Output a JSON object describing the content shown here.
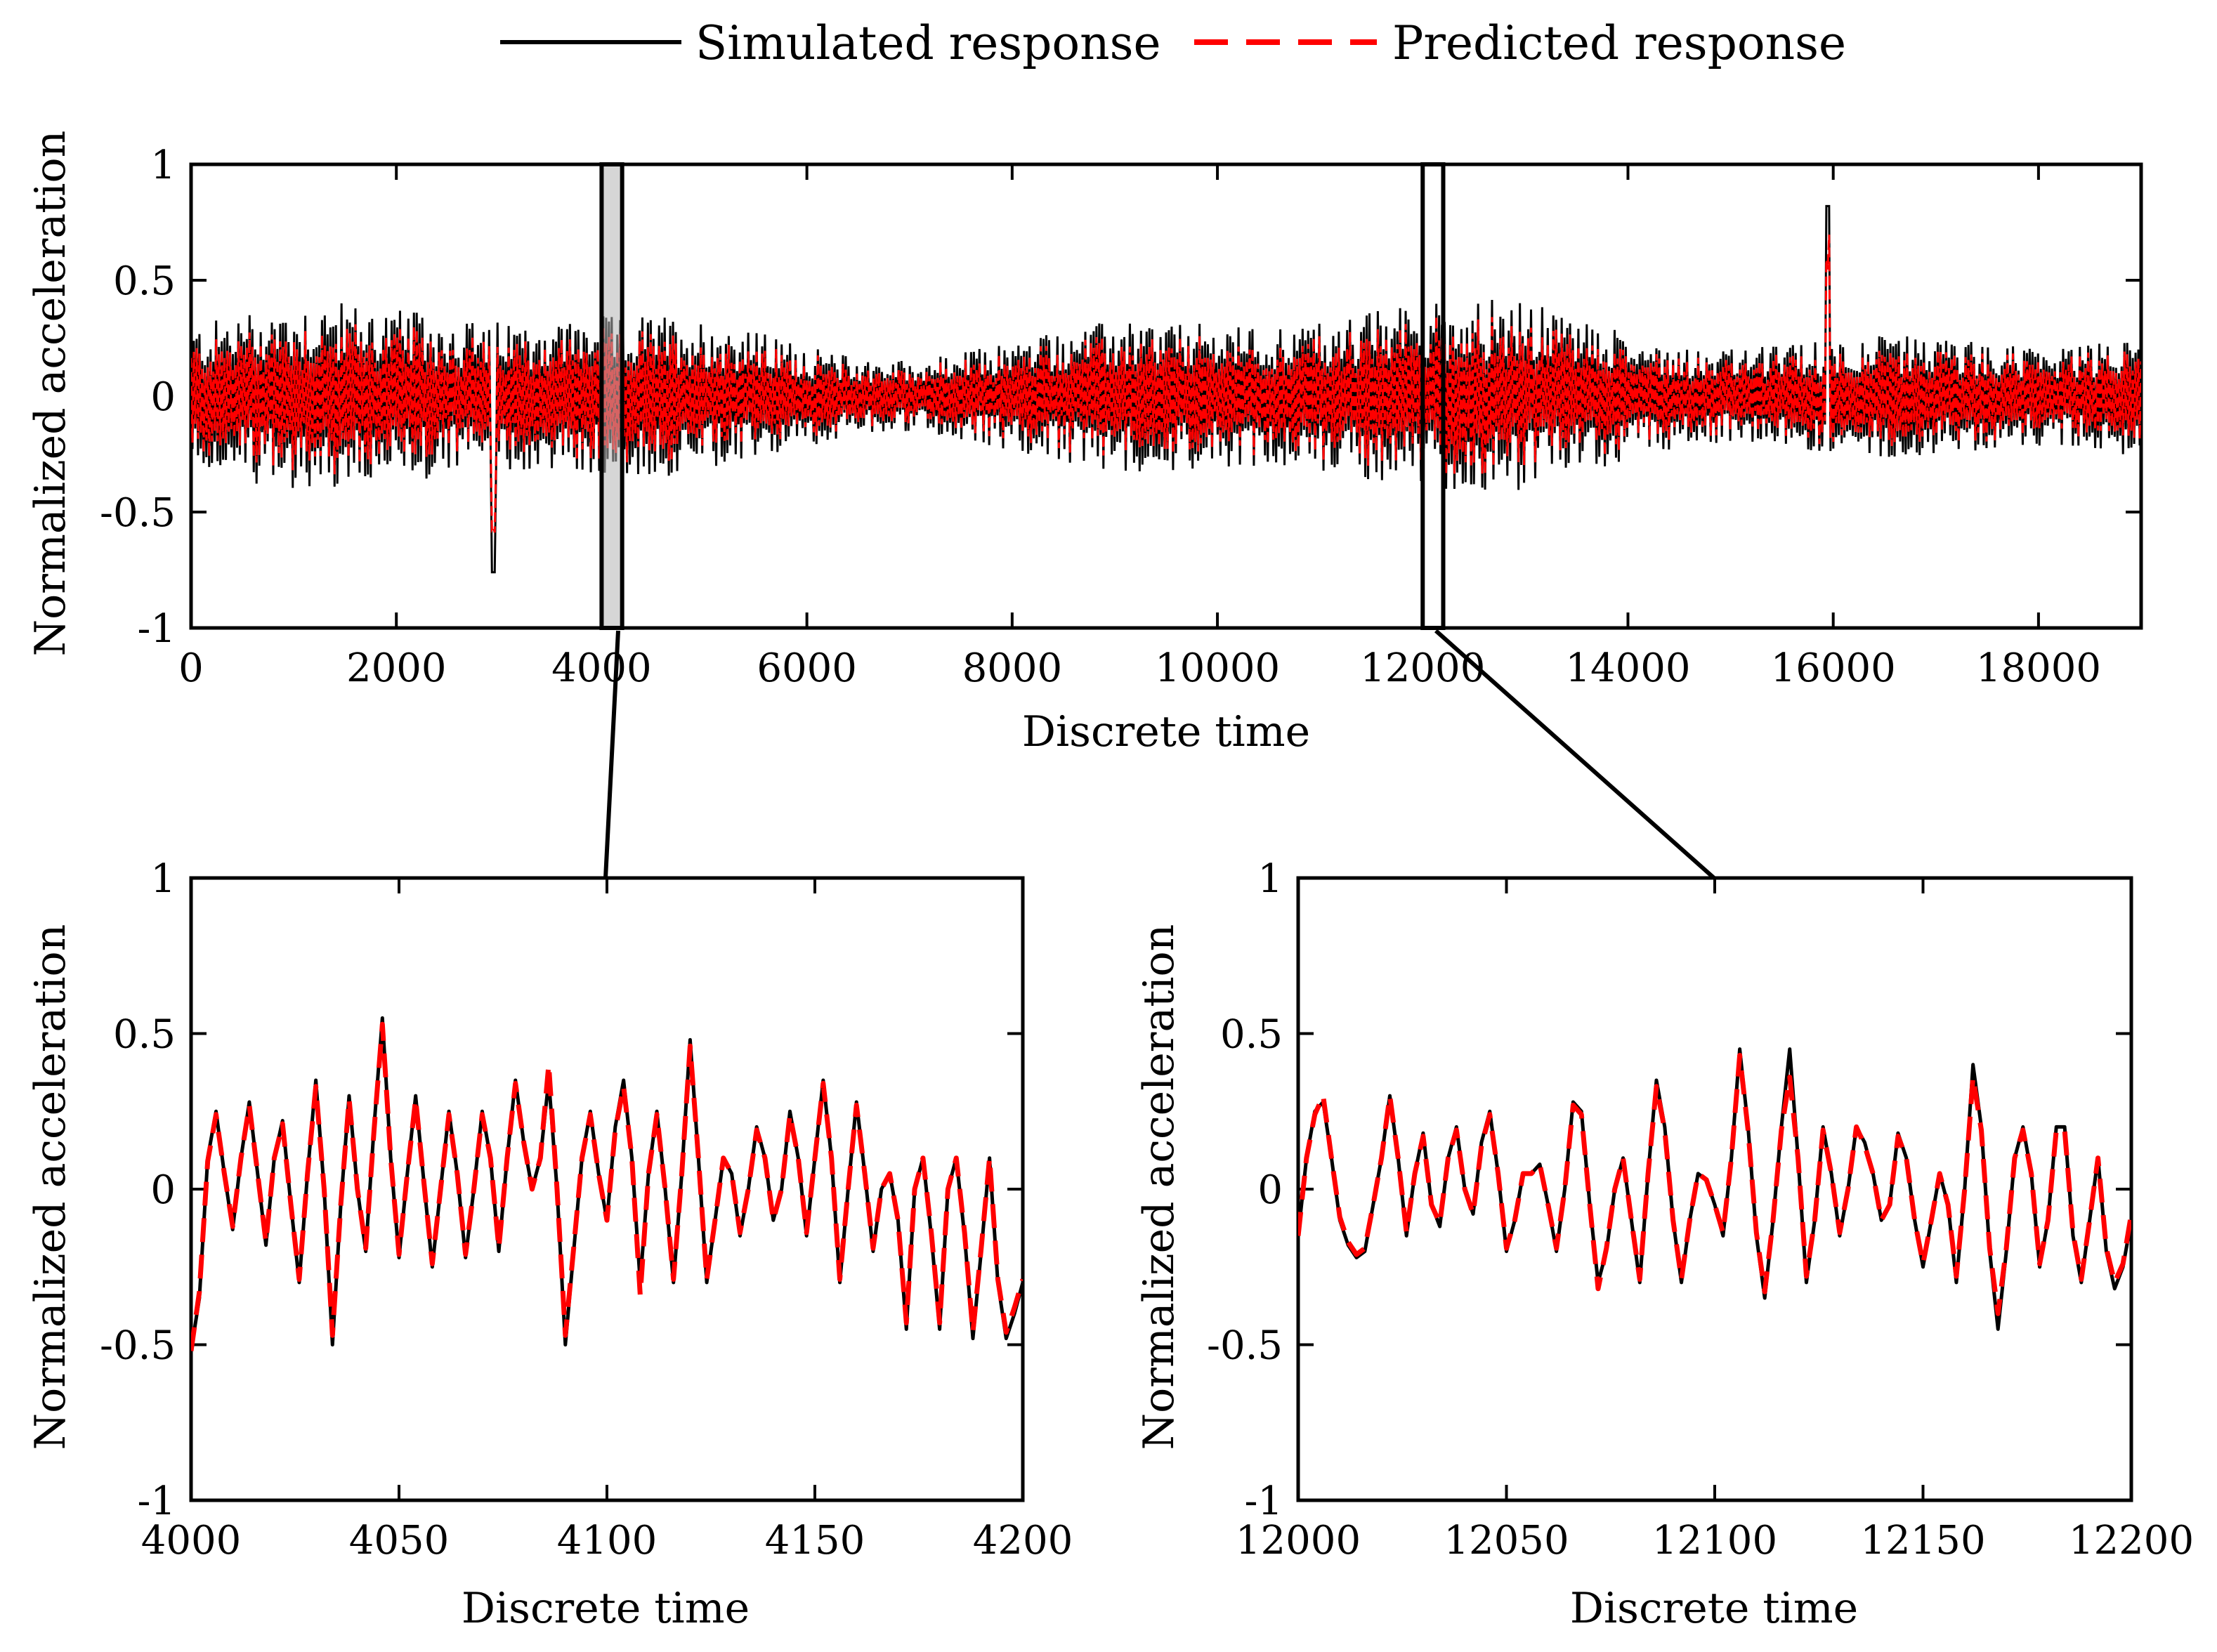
{
  "legend": {
    "simulated_label": "Simulated response",
    "predicted_label": "Predicted response"
  },
  "colors": {
    "simulated": "#000000",
    "predicted": "#ff0000"
  },
  "chart_data": [
    {
      "id": "overview",
      "type": "line",
      "xlabel": "Discrete time",
      "ylabel": "Normalized acceleration",
      "xlim": [
        0,
        19000
      ],
      "ylim": [
        -1,
        1
      ],
      "xticks": [
        0,
        2000,
        4000,
        6000,
        8000,
        10000,
        12000,
        14000,
        16000,
        18000
      ],
      "yticks": [
        1,
        0.5,
        0,
        -0.5,
        -1
      ],
      "ytick_labels": [
        "1",
        "0.5",
        "0",
        "-0.5",
        "-1"
      ],
      "series": [
        {
          "name": "Simulated response",
          "style": "solid",
          "approx_amplitude": 0.35,
          "min": -0.76,
          "max": 0.82
        },
        {
          "name": "Predicted response",
          "style": "dashed",
          "approx_amplitude": 0.28
        }
      ],
      "highlights": [
        [
          4000,
          4200
        ],
        [
          12000,
          12200
        ]
      ]
    },
    {
      "id": "zoom-left",
      "type": "line",
      "xlabel": "Discrete time",
      "ylabel": "Normalized acceleration",
      "xlim": [
        4000,
        4200
      ],
      "ylim": [
        -1,
        1
      ],
      "xticks": [
        4000,
        4050,
        4100,
        4150,
        4200
      ],
      "yticks": [
        1,
        0.5,
        0,
        -0.5,
        -1
      ],
      "ytick_labels": [
        "1",
        "0.5",
        "0",
        "-0.5",
        "-1"
      ],
      "series": [
        {
          "name": "Simulated response",
          "x": [
            4000,
            4002,
            4004,
            4006,
            4008,
            4010,
            4012,
            4014,
            4016,
            4018,
            4020,
            4022,
            4024,
            4026,
            4028,
            4030,
            4032,
            4034,
            4036,
            4038,
            4040,
            4042,
            4044,
            4046,
            4048,
            4050,
            4052,
            4054,
            4056,
            4058,
            4060,
            4062,
            4064,
            4066,
            4068,
            4070,
            4072,
            4074,
            4076,
            4078,
            4080,
            4082,
            4084,
            4086,
            4088,
            4090,
            4092,
            4094,
            4096,
            4098,
            4100,
            4102,
            4104,
            4106,
            4108,
            4110,
            4112,
            4114,
            4116,
            4118,
            4120,
            4122,
            4124,
            4126,
            4128,
            4130,
            4132,
            4134,
            4136,
            4138,
            4140,
            4142,
            4144,
            4146,
            4148,
            4150,
            4152,
            4154,
            4156,
            4158,
            4160,
            4162,
            4164,
            4166,
            4168,
            4170,
            4172,
            4174,
            4176,
            4178,
            4180,
            4182,
            4184,
            4186,
            4188,
            4190,
            4192,
            4194,
            4196,
            4198,
            4200
          ],
          "y": [
            -0.52,
            -0.35,
            0.1,
            0.25,
            0.05,
            -0.13,
            0.1,
            0.28,
            0.05,
            -0.18,
            0.1,
            0.22,
            -0.05,
            -0.3,
            0.05,
            0.35,
            0.0,
            -0.5,
            -0.05,
            0.3,
            0.0,
            -0.2,
            0.2,
            0.55,
            0.1,
            -0.22,
            0.05,
            0.3,
            0.02,
            -0.25,
            0.0,
            0.25,
            0.05,
            -0.22,
            0.0,
            0.25,
            0.1,
            -0.2,
            0.1,
            0.35,
            0.15,
            0.0,
            0.1,
            0.35,
            0.0,
            -0.5,
            -0.2,
            0.1,
            0.25,
            0.05,
            -0.1,
            0.2,
            0.35,
            0.1,
            -0.3,
            0.05,
            0.25,
            0.0,
            -0.3,
            0.05,
            0.48,
            0.1,
            -0.3,
            -0.1,
            0.1,
            0.05,
            -0.15,
            0.0,
            0.2,
            0.1,
            -0.1,
            0.0,
            0.25,
            0.1,
            -0.15,
            0.1,
            0.35,
            0.1,
            -0.3,
            0.0,
            0.28,
            0.05,
            -0.2,
            0.0,
            0.05,
            -0.1,
            -0.45,
            0.0,
            0.1,
            -0.15,
            -0.45,
            0.0,
            0.1,
            -0.15,
            -0.48,
            -0.2,
            0.1,
            -0.3,
            -0.48,
            -0.4,
            -0.3
          ]
        },
        {
          "name": "Predicted response",
          "x": [
            4000,
            4002,
            4004,
            4006,
            4008,
            4010,
            4012,
            4014,
            4016,
            4018,
            4020,
            4022,
            4024,
            4026,
            4028,
            4030,
            4032,
            4034,
            4036,
            4038,
            4040,
            4042,
            4044,
            4046,
            4048,
            4050,
            4052,
            4054,
            4056,
            4058,
            4060,
            4062,
            4064,
            4066,
            4068,
            4070,
            4072,
            4074,
            4076,
            4078,
            4080,
            4082,
            4084,
            4086,
            4088,
            4090,
            4092,
            4094,
            4096,
            4098,
            4100,
            4102,
            4104,
            4106,
            4108,
            4110,
            4112,
            4114,
            4116,
            4118,
            4120,
            4122,
            4124,
            4126,
            4128,
            4130,
            4132,
            4134,
            4136,
            4138,
            4140,
            4142,
            4144,
            4146,
            4148,
            4150,
            4152,
            4154,
            4156,
            4158,
            4160,
            4162,
            4164,
            4166,
            4168,
            4170,
            4172,
            4174,
            4176,
            4178,
            4180,
            4182,
            4184,
            4186,
            4188,
            4190,
            4192,
            4194,
            4196,
            4198,
            4200
          ],
          "y": [
            -0.52,
            -0.33,
            0.09,
            0.24,
            0.05,
            -0.12,
            0.1,
            0.27,
            0.05,
            -0.17,
            0.1,
            0.21,
            -0.05,
            -0.29,
            0.05,
            0.33,
            0.0,
            -0.47,
            -0.05,
            0.29,
            0.0,
            -0.19,
            0.19,
            0.53,
            0.1,
            -0.21,
            0.05,
            0.29,
            0.02,
            -0.24,
            0.0,
            0.24,
            0.05,
            -0.21,
            0.0,
            0.24,
            0.1,
            -0.19,
            0.1,
            0.34,
            0.15,
            0.0,
            0.1,
            0.4,
            0.0,
            -0.47,
            -0.19,
            0.1,
            0.24,
            0.05,
            -0.1,
            0.19,
            0.33,
            0.1,
            -0.34,
            0.05,
            0.24,
            0.0,
            -0.29,
            0.05,
            0.46,
            0.1,
            -0.29,
            -0.1,
            0.1,
            0.05,
            -0.14,
            0.0,
            0.19,
            0.1,
            -0.1,
            0.0,
            0.24,
            0.1,
            -0.14,
            0.1,
            0.34,
            0.1,
            -0.29,
            0.0,
            0.27,
            0.05,
            -0.19,
            0.0,
            0.05,
            -0.1,
            -0.43,
            0.0,
            0.1,
            -0.14,
            -0.43,
            0.0,
            0.1,
            -0.14,
            -0.46,
            -0.19,
            0.1,
            -0.29,
            -0.46,
            -0.38,
            -0.29
          ]
        }
      ]
    },
    {
      "id": "zoom-right",
      "type": "line",
      "xlabel": "Discrete time",
      "ylabel": "Normalized acceleration",
      "xlim": [
        12000,
        12200
      ],
      "ylim": [
        -1,
        1
      ],
      "xticks": [
        12000,
        12050,
        12100,
        12150,
        12200
      ],
      "yticks": [
        1,
        0.5,
        0,
        -0.5,
        -1
      ],
      "ytick_labels": [
        "1",
        "0.5",
        "0",
        "-0.5",
        "-1"
      ],
      "series": [
        {
          "name": "Simulated response",
          "x": [
            12000,
            12002,
            12004,
            12006,
            12008,
            12010,
            12012,
            12014,
            12016,
            12018,
            12020,
            12022,
            12024,
            12026,
            12028,
            12030,
            12032,
            12034,
            12036,
            12038,
            12040,
            12042,
            12044,
            12046,
            12048,
            12050,
            12052,
            12054,
            12056,
            12058,
            12060,
            12062,
            12064,
            12066,
            12068,
            12070,
            12072,
            12074,
            12076,
            12078,
            12080,
            12082,
            12084,
            12086,
            12088,
            12090,
            12092,
            12094,
            12096,
            12098,
            12100,
            12102,
            12104,
            12106,
            12108,
            12110,
            12112,
            12114,
            12116,
            12118,
            12120,
            12122,
            12124,
            12126,
            12128,
            12130,
            12132,
            12134,
            12136,
            12138,
            12140,
            12142,
            12144,
            12146,
            12148,
            12150,
            12152,
            12154,
            12156,
            12158,
            12160,
            12162,
            12164,
            12166,
            12168,
            12170,
            12172,
            12174,
            12176,
            12178,
            12180,
            12182,
            12184,
            12186,
            12188,
            12190,
            12192,
            12194,
            12196,
            12198,
            12200
          ],
          "y": [
            -0.15,
            0.1,
            0.25,
            0.28,
            0.1,
            -0.1,
            -0.18,
            -0.22,
            -0.2,
            -0.05,
            0.1,
            0.3,
            0.1,
            -0.15,
            0.05,
            0.18,
            -0.05,
            -0.12,
            0.1,
            0.2,
            0.0,
            -0.08,
            0.15,
            0.25,
            0.05,
            -0.2,
            -0.1,
            0.05,
            0.05,
            0.08,
            -0.05,
            -0.2,
            0.0,
            0.28,
            0.25,
            -0.05,
            -0.3,
            -0.2,
            0.0,
            0.1,
            -0.1,
            -0.3,
            0.05,
            0.35,
            0.2,
            -0.1,
            -0.3,
            -0.1,
            0.05,
            0.03,
            -0.05,
            -0.15,
            0.1,
            0.45,
            0.2,
            -0.15,
            -0.35,
            -0.1,
            0.2,
            0.45,
            0.1,
            -0.3,
            -0.1,
            0.2,
            0.05,
            -0.15,
            0.0,
            0.2,
            0.15,
            0.05,
            -0.1,
            -0.05,
            0.18,
            0.1,
            -0.1,
            -0.25,
            -0.1,
            0.05,
            -0.05,
            -0.3,
            0.0,
            0.4,
            0.2,
            -0.2,
            -0.45,
            -0.2,
            0.1,
            0.2,
            0.05,
            -0.25,
            -0.1,
            0.2,
            0.2,
            -0.15,
            -0.3,
            -0.1,
            0.1,
            -0.2,
            -0.32,
            -0.25,
            -0.1
          ]
        },
        {
          "name": "Predicted response",
          "x": [
            12000,
            12002,
            12004,
            12006,
            12008,
            12010,
            12012,
            12014,
            12016,
            12018,
            12020,
            12022,
            12024,
            12026,
            12028,
            12030,
            12032,
            12034,
            12036,
            12038,
            12040,
            12042,
            12044,
            12046,
            12048,
            12050,
            12052,
            12054,
            12056,
            12058,
            12060,
            12062,
            12064,
            12066,
            12068,
            12070,
            12072,
            12074,
            12076,
            12078,
            12080,
            12082,
            12084,
            12086,
            12088,
            12090,
            12092,
            12094,
            12096,
            12098,
            12100,
            12102,
            12104,
            12106,
            12108,
            12110,
            12112,
            12114,
            12116,
            12118,
            12120,
            12122,
            12124,
            12126,
            12128,
            12130,
            12132,
            12134,
            12136,
            12138,
            12140,
            12142,
            12144,
            12146,
            12148,
            12150,
            12152,
            12154,
            12156,
            12158,
            12160,
            12162,
            12164,
            12166,
            12168,
            12170,
            12172,
            12174,
            12176,
            12178,
            12180,
            12182,
            12184,
            12186,
            12188,
            12190,
            12192,
            12194,
            12196,
            12198,
            12200
          ],
          "y": [
            -0.15,
            0.1,
            0.24,
            0.3,
            0.1,
            -0.09,
            -0.17,
            -0.21,
            -0.19,
            -0.05,
            0.1,
            0.3,
            0.1,
            -0.14,
            0.05,
            0.17,
            -0.05,
            -0.11,
            0.1,
            0.19,
            0.0,
            -0.08,
            0.14,
            0.24,
            0.05,
            -0.19,
            -0.1,
            0.05,
            0.05,
            0.08,
            -0.05,
            -0.19,
            0.0,
            0.27,
            0.24,
            -0.05,
            -0.32,
            -0.19,
            0.0,
            0.1,
            -0.1,
            -0.29,
            0.05,
            0.33,
            0.19,
            -0.1,
            -0.29,
            -0.1,
            0.05,
            0.03,
            -0.05,
            -0.14,
            0.1,
            0.43,
            0.19,
            -0.14,
            -0.33,
            -0.1,
            0.19,
            0.36,
            0.1,
            -0.28,
            -0.1,
            0.19,
            0.05,
            -0.14,
            0.0,
            0.2,
            0.14,
            0.05,
            -0.1,
            -0.05,
            0.17,
            0.1,
            -0.1,
            -0.24,
            -0.1,
            0.05,
            -0.05,
            -0.28,
            0.0,
            0.36,
            0.19,
            -0.19,
            -0.4,
            -0.19,
            0.1,
            0.19,
            0.05,
            -0.24,
            -0.1,
            0.19,
            0.19,
            -0.14,
            -0.29,
            -0.1,
            0.1,
            -0.19,
            -0.3,
            -0.24,
            -0.08
          ]
        }
      ]
    }
  ]
}
